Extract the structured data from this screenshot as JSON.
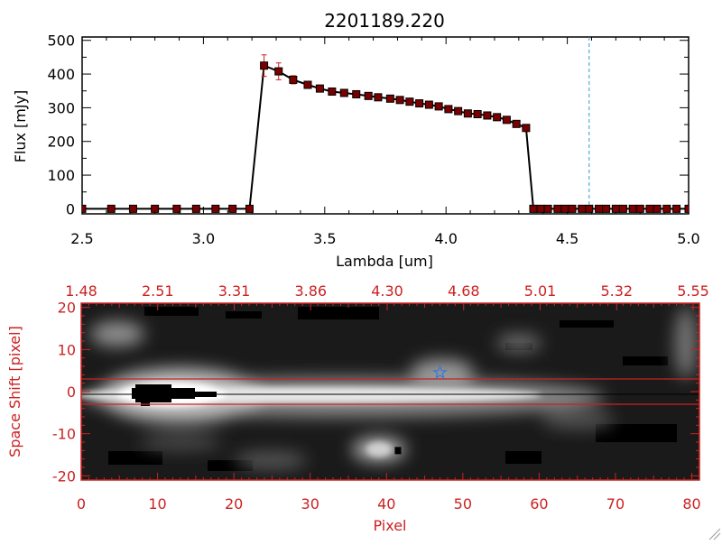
{
  "figure_title": "2201189.220",
  "colors": {
    "black": "#000000",
    "red": "#cc2222",
    "marker": "#8b0000",
    "cyan": "#3399cc",
    "star": "#3a7bd5"
  },
  "chart_data": [
    {
      "type": "line",
      "title": "2201189.220",
      "xlabel": "Lambda [um]",
      "ylabel": "Flux [mJy]",
      "xlim": [
        2.5,
        5.0
      ],
      "ylim": [
        -15,
        510
      ],
      "x_ticks": [
        "2.5",
        "3.0",
        "3.5",
        "4.0",
        "4.5",
        "5.0"
      ],
      "y_ticks": [
        "0",
        "100",
        "200",
        "300",
        "400",
        "500"
      ],
      "vline_x": 4.59,
      "series": [
        {
          "x": [
            2.5,
            2.62,
            2.71,
            2.8,
            2.89,
            2.97,
            3.05,
            3.12,
            3.19,
            3.25,
            3.31,
            3.37,
            3.43,
            3.48,
            3.53,
            3.58,
            3.63,
            3.68,
            3.72,
            3.77,
            3.81,
            3.85,
            3.89,
            3.93,
            3.97,
            4.01,
            4.05,
            4.09,
            4.13,
            4.17,
            4.21,
            4.25,
            4.29,
            4.33,
            4.36,
            4.39,
            4.42,
            4.46,
            4.49,
            4.52,
            4.56,
            4.59,
            4.63,
            4.66,
            4.7,
            4.73,
            4.77,
            4.8,
            4.84,
            4.87,
            4.91,
            4.95,
            5.0
          ],
          "y": [
            0,
            0,
            0,
            0,
            0,
            0,
            0,
            0,
            0,
            425,
            408,
            383,
            368,
            357,
            348,
            344,
            340,
            335,
            331,
            327,
            323,
            318,
            313,
            309,
            304,
            296,
            290,
            283,
            281,
            277,
            272,
            264,
            252,
            240,
            0,
            0,
            0,
            0,
            0,
            0,
            0,
            0,
            0,
            0,
            0,
            0,
            0,
            0,
            0,
            0,
            0,
            0,
            0
          ],
          "yerr": [
            0,
            0,
            0,
            0,
            0,
            0,
            0,
            0,
            0,
            32,
            25,
            12,
            5,
            3,
            2,
            2,
            2,
            2,
            2,
            2,
            2,
            2,
            2,
            2,
            2,
            2,
            2,
            2,
            2,
            2,
            2,
            2,
            2,
            2,
            0,
            0,
            0,
            0,
            0,
            0,
            0,
            0,
            0,
            0,
            0,
            0,
            0,
            0,
            0,
            0,
            0,
            0,
            0
          ]
        }
      ]
    },
    {
      "type": "heatmap",
      "xlabel": "Pixel",
      "ylabel": "Space Shift [pixel]",
      "xlim": [
        0,
        81
      ],
      "ylim": [
        -21,
        21
      ],
      "x_ticks": [
        "0",
        "10",
        "20",
        "30",
        "40",
        "50",
        "60",
        "70",
        "80"
      ],
      "y_ticks": [
        "-20",
        "-10",
        "0",
        "10",
        "20"
      ],
      "top_ticks": [
        "1.48",
        "2.51",
        "3.31",
        "3.86",
        "4.30",
        "4.68",
        "5.01",
        "5.32",
        "5.55"
      ],
      "hlines": [
        3,
        -3
      ],
      "star": {
        "x": 47,
        "y": 4.5
      },
      "marker_square": {
        "x": 41.5,
        "y": -14
      },
      "colormap": "grayscale"
    }
  ]
}
